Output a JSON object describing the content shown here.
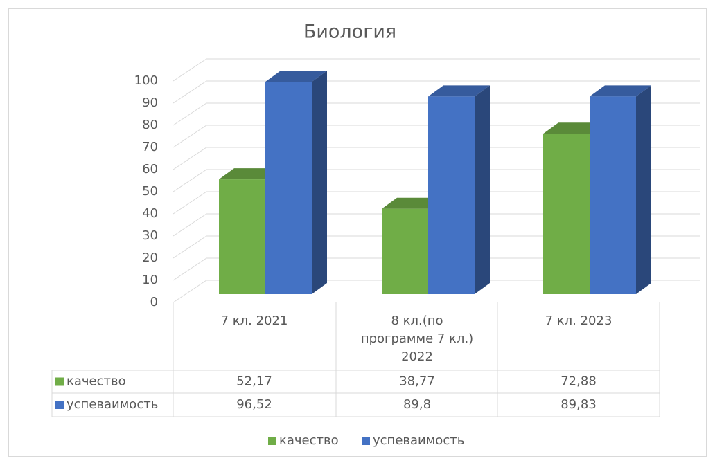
{
  "chart_data": {
    "type": "bar3d",
    "title": "Биология",
    "categories": [
      "7 кл.  2021",
      "8 кл.(по программе 7 кл.) 2022",
      "7 кл. 2023"
    ],
    "series": [
      {
        "name": "качество",
        "color": "#70ad47",
        "values": [
          52.17,
          38.77,
          72.88
        ],
        "value_labels": [
          "52,17",
          "38,77",
          "72,88"
        ]
      },
      {
        "name": "успеваимость",
        "color": "#4472c4",
        "values": [
          96.52,
          89.8,
          89.83
        ],
        "value_labels": [
          "96,52",
          "89,8",
          "89,83"
        ]
      }
    ],
    "ylim": [
      0,
      100
    ],
    "yticks": [
      0,
      10,
      20,
      30,
      40,
      50,
      60,
      70,
      80,
      90,
      100
    ],
    "grid": true,
    "legend": "bottom"
  }
}
